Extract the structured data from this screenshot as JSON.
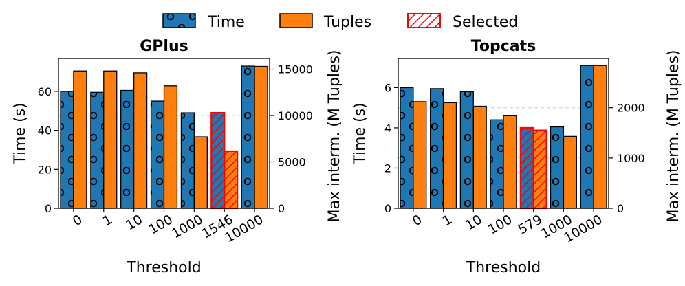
{
  "legend": {
    "placement": "top-center",
    "items": [
      {
        "label": "Time",
        "style": "circles"
      },
      {
        "label": "Tuples",
        "style": "solid"
      },
      {
        "label": "Selected",
        "style": "hatch"
      }
    ]
  },
  "colors": {
    "time": "#1f77b4",
    "tuples": "#ff7f0e",
    "selected": "#ff0000",
    "grid": "#cccccc"
  },
  "chart_data": [
    {
      "type": "bar",
      "title": "GPlus",
      "xlabel": "Threshold",
      "ylabel": "Time (s)",
      "y2label": "Max interm. (M Tuples)",
      "categories": [
        "0",
        "1",
        "10",
        "100",
        "1000",
        "1546",
        "10000"
      ],
      "selected_index": 5,
      "ylim": [
        0,
        76.9
      ],
      "yticks": [
        0,
        20,
        40,
        60
      ],
      "y2lim": [
        0,
        16150
      ],
      "y2ticks": [
        0,
        5000,
        10000,
        15000
      ],
      "series": [
        {
          "name": "Time",
          "axis": "left",
          "values": [
            60,
            59.5,
            60.5,
            55,
            49,
            49,
            73
          ]
        },
        {
          "name": "Tuples",
          "axis": "right",
          "values": [
            14800,
            14800,
            14600,
            13200,
            7700,
            6150,
            15300
          ]
        }
      ]
    },
    {
      "type": "bar",
      "title": "Topcats",
      "xlabel": "Threshold",
      "ylabel": "Time (s)",
      "y2label": "Max interm. (M Tuples)",
      "categories": [
        "0",
        "1",
        "10",
        "100",
        "579",
        "1000",
        "10000"
      ],
      "selected_index": 4,
      "ylim": [
        0,
        7.45
      ],
      "yticks": [
        0,
        2,
        4,
        6
      ],
      "y2lim": [
        0,
        2980
      ],
      "y2ticks": [
        0,
        1000,
        2000
      ],
      "series": [
        {
          "name": "Time",
          "axis": "left",
          "values": [
            6.0,
            5.95,
            5.8,
            4.4,
            4.0,
            4.05,
            7.1
          ]
        },
        {
          "name": "Tuples",
          "axis": "right",
          "values": [
            2120,
            2100,
            2030,
            1840,
            1550,
            1430,
            2840
          ]
        }
      ]
    }
  ]
}
